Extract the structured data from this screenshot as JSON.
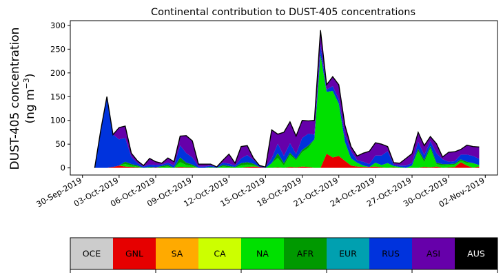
{
  "chart_data": {
    "type": "area",
    "stacked": true,
    "title": "Continental contribution to DUST-405 concentrations",
    "ylabel": [
      "DUST-405 concentration",
      "(ng m",
      "−3",
      ")"
    ],
    "xlabel": "",
    "ylim": [
      -15,
      310
    ],
    "yticks": [
      0,
      50,
      100,
      150,
      200,
      250,
      300
    ],
    "xlim": [
      "2019-09-29",
      "2019-11-03"
    ],
    "xtick_labels": [
      "30-Sep-2019",
      "03-Oct-2019",
      "06-Oct-2019",
      "09-Oct-2019",
      "12-Oct-2019",
      "15-Oct-2019",
      "18-Oct-2019",
      "21-Oct-2019",
      "24-Oct-2019",
      "27-Oct-2019",
      "30-Oct-2019",
      "02-Nov-2019"
    ],
    "xtick_dates": [
      "2019-09-30",
      "2019-10-03",
      "2019-10-06",
      "2019-10-09",
      "2019-10-12",
      "2019-10-15",
      "2019-10-18",
      "2019-10-21",
      "2019-10-24",
      "2019-10-27",
      "2019-10-30",
      "2019-11-02"
    ],
    "x": [
      "2019-10-01T00:00",
      "2019-10-01T12:00",
      "2019-10-02T00:00",
      "2019-10-02T12:00",
      "2019-10-03T00:00",
      "2019-10-03T12:00",
      "2019-10-04T00:00",
      "2019-10-04T12:00",
      "2019-10-05T00:00",
      "2019-10-05T12:00",
      "2019-10-06T00:00",
      "2019-10-06T12:00",
      "2019-10-07T00:00",
      "2019-10-07T12:00",
      "2019-10-08T00:00",
      "2019-10-08T12:00",
      "2019-10-09T00:00",
      "2019-10-09T12:00",
      "2019-10-10T00:00",
      "2019-10-10T12:00",
      "2019-10-11T00:00",
      "2019-10-11T12:00",
      "2019-10-12T00:00",
      "2019-10-12T12:00",
      "2019-10-13T00:00",
      "2019-10-13T12:00",
      "2019-10-14T00:00",
      "2019-10-14T12:00",
      "2019-10-15T00:00",
      "2019-10-15T12:00",
      "2019-10-16T00:00",
      "2019-10-16T12:00",
      "2019-10-17T00:00",
      "2019-10-17T12:00",
      "2019-10-18T00:00",
      "2019-10-18T12:00",
      "2019-10-19T00:00",
      "2019-10-19T12:00",
      "2019-10-20T00:00",
      "2019-10-20T12:00",
      "2019-10-21T00:00",
      "2019-10-21T12:00",
      "2019-10-22T00:00",
      "2019-10-22T12:00",
      "2019-10-23T00:00",
      "2019-10-23T12:00",
      "2019-10-24T00:00",
      "2019-10-24T12:00",
      "2019-10-25T00:00",
      "2019-10-25T12:00",
      "2019-10-26T00:00",
      "2019-10-26T12:00",
      "2019-10-27T00:00",
      "2019-10-27T12:00",
      "2019-10-28T00:00",
      "2019-10-28T12:00",
      "2019-10-29T00:00",
      "2019-10-29T12:00",
      "2019-10-30T00:00",
      "2019-10-30T12:00",
      "2019-10-31T00:00",
      "2019-10-31T12:00",
      "2019-11-01T00:00",
      "2019-11-01T12:00"
    ],
    "series": [
      {
        "name": "OCE",
        "color": "#cccccc",
        "values": [
          0,
          0,
          0,
          0,
          0,
          0,
          0,
          0,
          0,
          0,
          0,
          0,
          0,
          0,
          0,
          0,
          0,
          0,
          0,
          0,
          0,
          0,
          0,
          0,
          0,
          0,
          0,
          0,
          0,
          0,
          0,
          0,
          0,
          0,
          0,
          0,
          0,
          0,
          0,
          0,
          0,
          0,
          0,
          0,
          0,
          0,
          0,
          0,
          0,
          0,
          0,
          0,
          0,
          0,
          0,
          0,
          0,
          0,
          0,
          0,
          0,
          0,
          0,
          0
        ]
      },
      {
        "name": "GNL",
        "color": "#e60000",
        "values": [
          0,
          0,
          0,
          2,
          5,
          3,
          2,
          1,
          0,
          0,
          1,
          0,
          0,
          0,
          2,
          1,
          1,
          0,
          0,
          0,
          0,
          0,
          0,
          0,
          0,
          2,
          3,
          2,
          0,
          0,
          1,
          0,
          2,
          1,
          3,
          2,
          0,
          0,
          30,
          22,
          25,
          15,
          5,
          3,
          2,
          2,
          3,
          1,
          0,
          1,
          0,
          0,
          0,
          0,
          2,
          1,
          3,
          0,
          1,
          2,
          12,
          5,
          0,
          3
        ]
      },
      {
        "name": "SA",
        "color": "#ffaa00",
        "values": [
          0,
          0,
          0,
          0,
          0,
          0,
          0,
          0,
          0,
          0,
          0,
          0,
          0,
          0,
          0,
          0,
          0,
          0,
          0,
          0,
          0,
          0,
          0,
          0,
          0,
          0,
          0,
          0,
          0,
          0,
          0,
          0,
          0,
          0,
          0,
          0,
          0,
          0,
          0,
          0,
          0,
          0,
          0,
          0,
          0,
          0,
          0,
          0,
          0,
          0,
          0,
          0,
          0,
          0,
          0,
          0,
          0,
          0,
          0,
          0,
          0,
          0,
          0,
          0
        ]
      },
      {
        "name": "CA",
        "color": "#ccff00",
        "values": [
          0,
          0,
          0,
          0,
          0,
          0,
          0,
          0,
          0,
          0,
          0,
          0,
          0,
          0,
          0,
          0,
          0,
          0,
          0,
          0,
          0,
          0,
          0,
          0,
          0,
          0,
          0,
          0,
          0,
          0,
          0,
          0,
          0,
          0,
          0,
          0,
          0,
          0,
          0,
          0,
          0,
          0,
          0,
          0,
          0,
          0,
          0,
          0,
          0,
          0,
          0,
          0,
          0,
          0,
          0,
          0,
          0,
          0,
          0,
          0,
          0,
          0,
          0,
          0
        ]
      },
      {
        "name": "NA",
        "color": "#00e000",
        "values": [
          0,
          0,
          0,
          0,
          0,
          5,
          3,
          2,
          0,
          1,
          0,
          2,
          3,
          0,
          10,
          5,
          3,
          0,
          0,
          1,
          0,
          3,
          2,
          1,
          5,
          5,
          3,
          0,
          0,
          10,
          20,
          5,
          25,
          15,
          30,
          40,
          60,
          235,
          130,
          140,
          110,
          40,
          15,
          8,
          3,
          0,
          8,
          5,
          10,
          3,
          2,
          0,
          5,
          35,
          10,
          40,
          5,
          5,
          5,
          5,
          3,
          5,
          10,
          3
        ]
      },
      {
        "name": "AFR",
        "color": "#009900",
        "values": [
          0,
          0,
          0,
          0,
          0,
          5,
          3,
          2,
          0,
          1,
          0,
          2,
          3,
          0,
          10,
          5,
          3,
          0,
          0,
          1,
          0,
          3,
          2,
          1,
          5,
          5,
          3,
          0,
          0,
          0,
          10,
          5,
          5,
          3,
          5,
          5,
          0,
          5,
          0,
          0,
          0,
          0,
          0,
          0,
          0,
          0,
          0,
          0,
          0,
          0,
          0,
          0,
          0,
          5,
          5,
          5,
          3,
          3,
          2,
          2,
          3,
          3,
          0,
          0
        ]
      },
      {
        "name": "EUR",
        "color": "#00a0b0",
        "values": [
          0,
          0,
          0,
          0,
          0,
          0,
          0,
          0,
          0,
          0,
          0,
          0,
          0,
          0,
          0,
          0,
          0,
          0,
          0,
          0,
          0,
          0,
          0,
          0,
          0,
          0,
          0,
          0,
          0,
          0,
          0,
          0,
          0,
          0,
          0,
          0,
          0,
          0,
          0,
          0,
          0,
          0,
          0,
          0,
          0,
          0,
          0,
          0,
          0,
          0,
          0,
          0,
          0,
          0,
          0,
          0,
          0,
          0,
          0,
          0,
          0,
          0,
          0,
          0
        ]
      },
      {
        "name": "RUS",
        "color": "#0033dd",
        "values": [
          0,
          80,
          150,
          68,
          55,
          50,
          15,
          5,
          3,
          5,
          5,
          3,
          5,
          5,
          25,
          20,
          15,
          3,
          3,
          3,
          2,
          5,
          5,
          3,
          10,
          15,
          8,
          3,
          2,
          10,
          20,
          15,
          20,
          10,
          25,
          25,
          10,
          20,
          5,
          10,
          10,
          15,
          15,
          5,
          8,
          6,
          15,
          20,
          25,
          3,
          3,
          5,
          5,
          15,
          10,
          10,
          20,
          10,
          5,
          5,
          10,
          15,
          15,
          13
        ]
      },
      {
        "name": "ASI",
        "color": "#6600aa",
        "values": [
          0,
          0,
          0,
          0,
          25,
          25,
          8,
          5,
          2,
          13,
          7,
          3,
          10,
          8,
          20,
          37,
          35,
          5,
          5,
          3,
          0,
          5,
          20,
          5,
          25,
          20,
          4,
          0,
          0,
          60,
          20,
          50,
          45,
          38,
          37,
          27,
          30,
          30,
          10,
          20,
          30,
          20,
          10,
          9,
          18,
          27,
          27,
          24,
          10,
          4,
          5,
          15,
          20,
          20,
          20,
          10,
          20,
          5,
          20,
          20,
          11,
          20,
          20,
          25
        ]
      },
      {
        "name": "AUS",
        "color": "#000000",
        "values": [
          0,
          0,
          0,
          0,
          0,
          0,
          0,
          0,
          0,
          0,
          0,
          0,
          0,
          0,
          0,
          0,
          0,
          0,
          0,
          0,
          0,
          0,
          0,
          0,
          0,
          0,
          0,
          0,
          0,
          0,
          0,
          0,
          0,
          0,
          0,
          0,
          0,
          0,
          0,
          0,
          0,
          0,
          0,
          0,
          0,
          0,
          0,
          0,
          0,
          0,
          0,
          0,
          0,
          0,
          0,
          0,
          0,
          0,
          0,
          0,
          0,
          0,
          0,
          0
        ]
      }
    ],
    "legend": {
      "placement": "bottom",
      "entries": [
        {
          "label": "OCE",
          "color": "#cccccc",
          "text_color": "#000000"
        },
        {
          "label": "GNL",
          "color": "#e60000",
          "text_color": "#000000"
        },
        {
          "label": "SA",
          "color": "#ffaa00",
          "text_color": "#000000"
        },
        {
          "label": "CA",
          "color": "#ccff00",
          "text_color": "#000000"
        },
        {
          "label": "NA",
          "color": "#00e000",
          "text_color": "#000000"
        },
        {
          "label": "AFR",
          "color": "#009900",
          "text_color": "#000000"
        },
        {
          "label": "EUR",
          "color": "#00a0b0",
          "text_color": "#000000"
        },
        {
          "label": "RUS",
          "color": "#0033dd",
          "text_color": "#000000"
        },
        {
          "label": "ASI",
          "color": "#6600aa",
          "text_color": "#000000"
        },
        {
          "label": "AUS",
          "color": "#000000",
          "text_color": "#ffffff"
        }
      ]
    },
    "grid": false
  }
}
